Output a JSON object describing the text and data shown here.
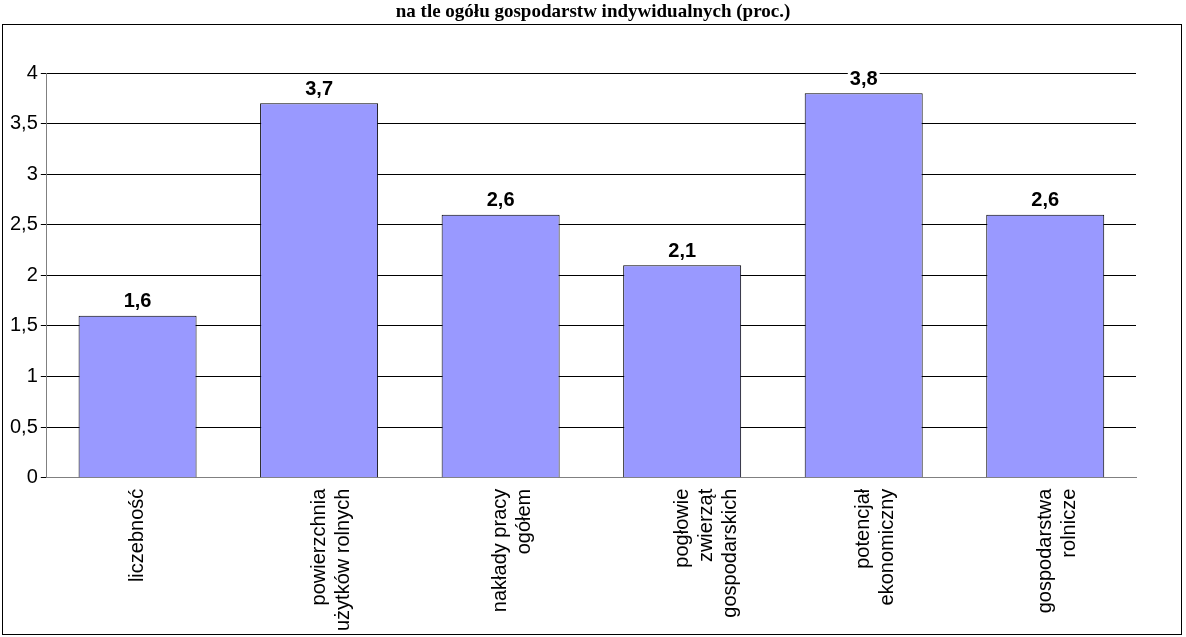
{
  "chart_data": {
    "type": "bar",
    "title": "na tle ogółu gospodarstw indywidualnych (proc.)",
    "categories": [
      "liczebność",
      "powierzchnia\nużytków rolnych",
      "nakłady pracy\nogółem",
      "pogłowie\nzwierząt\ngospodarskich",
      "potencjał\nekonomiczny",
      "gospodarstwa\nrolnicze"
    ],
    "values": [
      1.6,
      3.7,
      2.6,
      2.1,
      3.8,
      2.6
    ],
    "color": "#9999ff",
    "value_labels": [
      "1,6",
      "3,7",
      "2,6",
      "2,1",
      "3,8",
      "2,6"
    ],
    "ylim": [
      0,
      4
    ],
    "yticks": [
      0,
      {
        "value": 0.5,
        "label": "0,5"
      },
      1,
      {
        "value": 1.5,
        "label": "1,5"
      },
      2,
      {
        "value": 2.5,
        "label": "2,5"
      },
      3,
      {
        "value": 3.5,
        "label": "3,5"
      },
      4
    ],
    "grid": "y"
  }
}
